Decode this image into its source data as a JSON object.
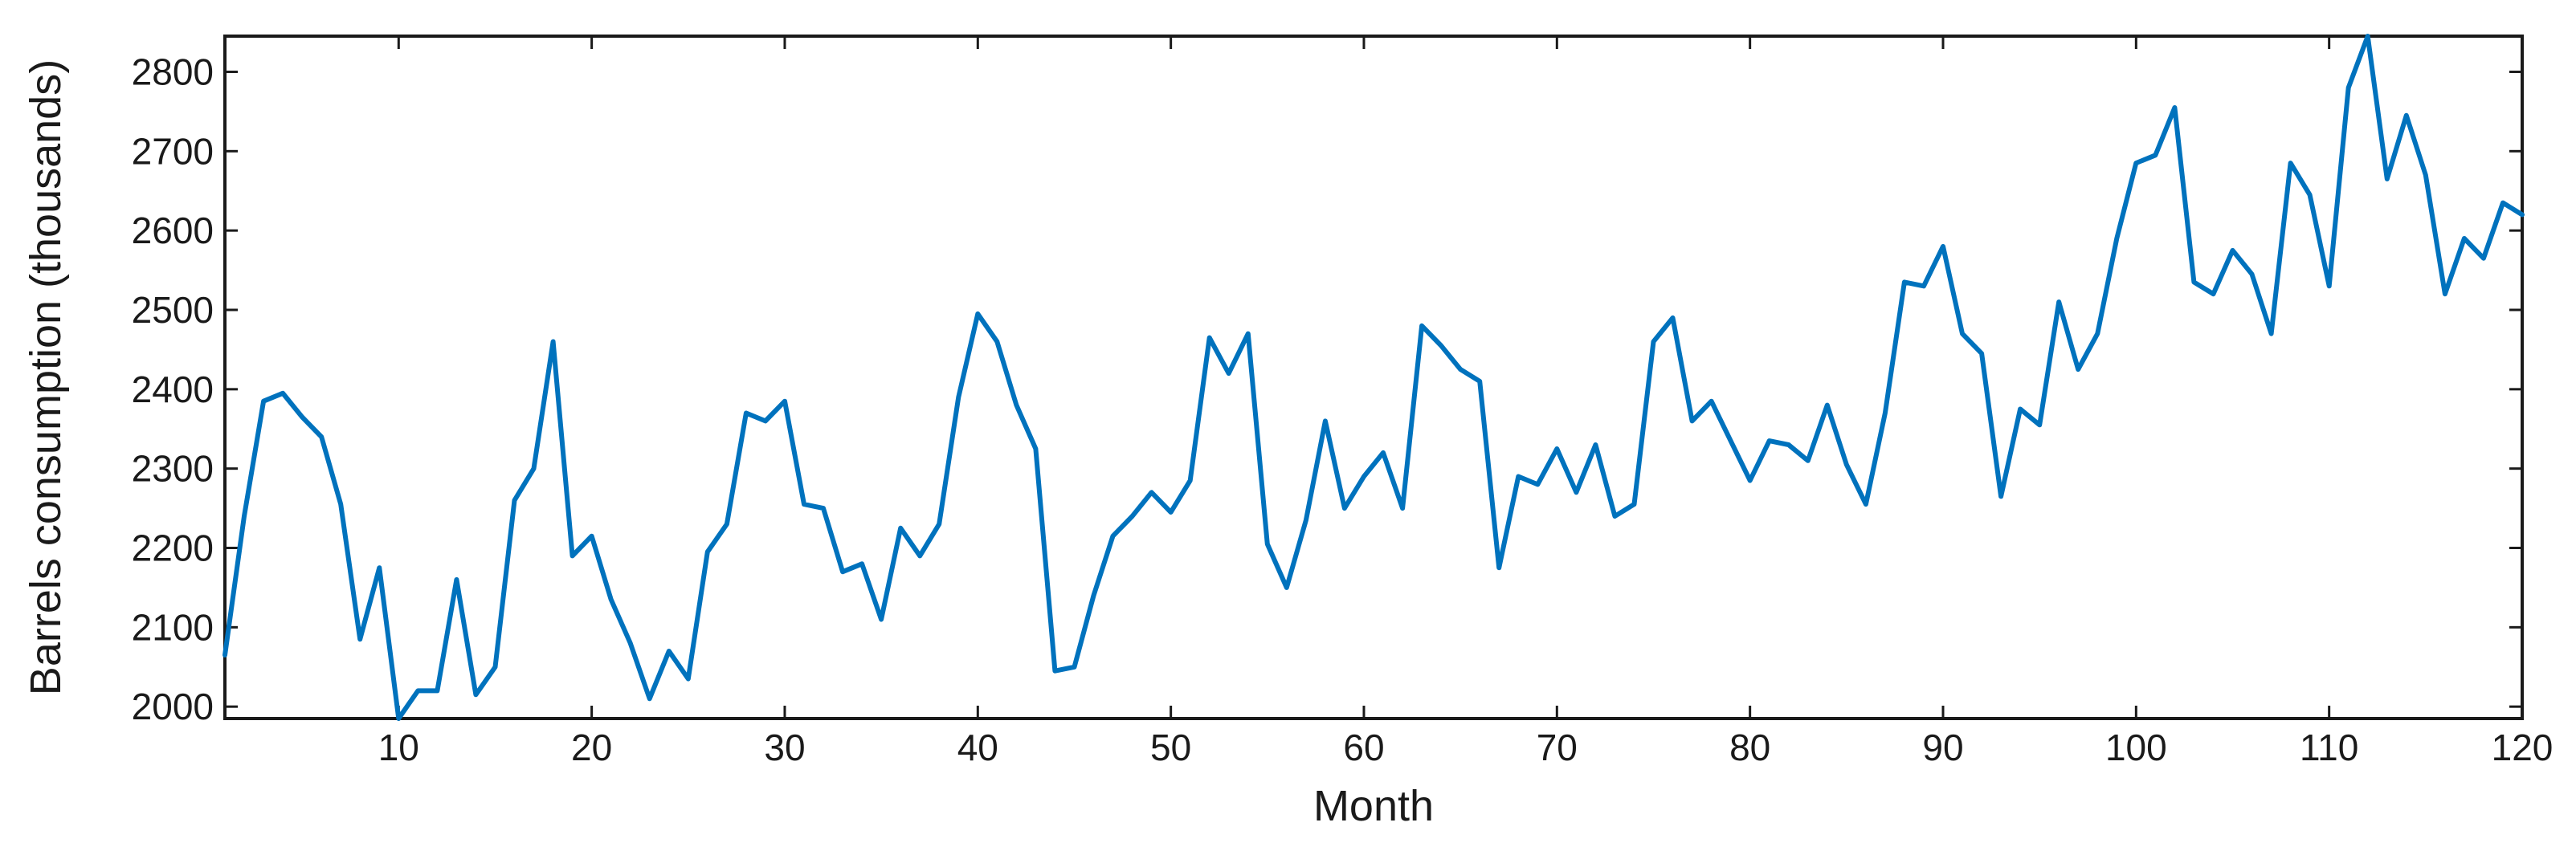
{
  "chart_data": {
    "type": "line",
    "title": "",
    "xlabel": "Month",
    "ylabel": "Barrels consumption (thousands)",
    "xlim": [
      1,
      120
    ],
    "ylim": [
      1985,
      2845
    ],
    "x_ticks": [
      10,
      20,
      30,
      40,
      50,
      60,
      70,
      80,
      90,
      100,
      110,
      120
    ],
    "y_ticks": [
      2000,
      2100,
      2200,
      2300,
      2400,
      2500,
      2600,
      2700,
      2800
    ],
    "grid": false,
    "line_color": "#0072BD",
    "series": [
      {
        "x": [
          1,
          2,
          3,
          4,
          5,
          6,
          7,
          8,
          9,
          10,
          11,
          12,
          13,
          14,
          15,
          16,
          17,
          18,
          19,
          20,
          21,
          22,
          23,
          24,
          25,
          26,
          27,
          28,
          29,
          30,
          31,
          32,
          33,
          34,
          35,
          36,
          37,
          38,
          39,
          40,
          41,
          42,
          43,
          44,
          45,
          46,
          47,
          48,
          49,
          50,
          51,
          52,
          53,
          54,
          55,
          56,
          57,
          58,
          59,
          60,
          61,
          62,
          63,
          64,
          65,
          66,
          67,
          68,
          69,
          70,
          71,
          72,
          73,
          74,
          75,
          76,
          77,
          78,
          79,
          80,
          81,
          82,
          83,
          84,
          85,
          86,
          87,
          88,
          89,
          90,
          91,
          92,
          93,
          94,
          95,
          96,
          97,
          98,
          99,
          100,
          101,
          102,
          103,
          104,
          105,
          106,
          107,
          108,
          109,
          110,
          111,
          112,
          113,
          114,
          115,
          116,
          117,
          118,
          119,
          120
        ],
        "values": [
          2065,
          2240,
          2385,
          2395,
          2365,
          2340,
          2255,
          2085,
          2175,
          1985,
          2020,
          2020,
          2160,
          2015,
          2050,
          2260,
          2300,
          2460,
          2190,
          2215,
          2135,
          2080,
          2010,
          2070,
          2035,
          2195,
          2230,
          2370,
          2360,
          2385,
          2255,
          2250,
          2170,
          2180,
          2110,
          2225,
          2190,
          2230,
          2390,
          2495,
          2460,
          2380,
          2325,
          2045,
          2050,
          2140,
          2215,
          2240,
          2270,
          2245,
          2285,
          2465,
          2420,
          2470,
          2205,
          2150,
          2235,
          2360,
          2250,
          2290,
          2320,
          2250,
          2480,
          2455,
          2425,
          2410,
          2175,
          2290,
          2280,
          2325,
          2270,
          2330,
          2240,
          2255,
          2460,
          2490,
          2360,
          2385,
          2335,
          2285,
          2335,
          2330,
          2310,
          2380,
          2305,
          2255,
          2370,
          2535,
          2530,
          2580,
          2470,
          2445,
          2265,
          2375,
          2355,
          2510,
          2425,
          2470,
          2590,
          2685,
          2695,
          2755,
          2535,
          2520,
          2575,
          2545,
          2470,
          2685,
          2645,
          2530,
          2780,
          2845,
          2665,
          2745,
          2670,
          2520,
          2590,
          2565,
          2635,
          2620
        ]
      }
    ]
  }
}
